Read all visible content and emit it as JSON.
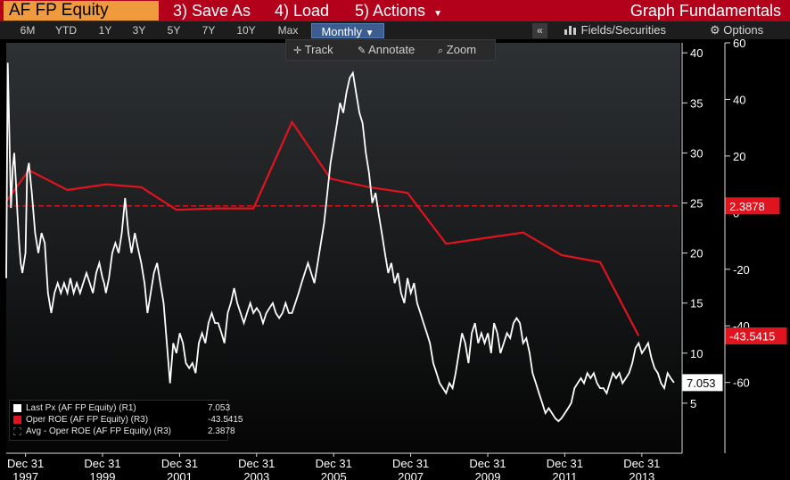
{
  "toolbar": {
    "ticker": "AF FP Equity",
    "save_as": "3) Save As",
    "load": "4) Load",
    "actions": "5) Actions",
    "title": "Graph Fundamentals"
  },
  "periods": [
    "6M",
    "YTD",
    "1Y",
    "3Y",
    "5Y",
    "7Y",
    "10Y",
    "Max"
  ],
  "frequency": "Monthly",
  "collapse_label": "«",
  "fields_label": "Fields/Securities",
  "options_label": "Options",
  "tools": {
    "track": "Track",
    "annotate": "Annotate",
    "zoom": "Zoom"
  },
  "legend": {
    "rows": [
      {
        "name": "Last Px (AF FP Equity) (R1)",
        "value": "7.053"
      },
      {
        "name": "Oper ROE (AF FP Equity) (R3)",
        "value": "-43.5415"
      },
      {
        "name": "Avg - Oper ROE (AF FP Equity) (R3)",
        "value": "2.3878"
      }
    ]
  },
  "colors": {
    "price": "#ffffff",
    "roe": "#e0141e",
    "avg": "#e0141e",
    "titlebar": "#b3001b",
    "ticker_bg": "#f09a3e"
  },
  "chart_data": {
    "type": "line",
    "x_axis": {
      "type": "date",
      "range": [
        "1997-07-01",
        "2014-12-31"
      ],
      "ticks": [
        {
          "date": "1997-12-31",
          "label": "Dec 31\n1997"
        },
        {
          "date": "1999-12-31",
          "label": "Dec 31\n1999"
        },
        {
          "date": "2001-12-31",
          "label": "Dec 31\n2001"
        },
        {
          "date": "2003-12-31",
          "label": "Dec 31\n2003"
        },
        {
          "date": "2005-12-31",
          "label": "Dec 31\n2005"
        },
        {
          "date": "2007-12-31",
          "label": "Dec 31\n2007"
        },
        {
          "date": "2009-12-31",
          "label": "Dec 31\n2009"
        },
        {
          "date": "2011-12-31",
          "label": "Dec 31\n2011"
        },
        {
          "date": "2013-12-31",
          "label": "Dec 31\n2013"
        }
      ]
    },
    "axis_r1": {
      "min": 0,
      "max": 41,
      "ticks": [
        5,
        10,
        15,
        20,
        25,
        30,
        35,
        40
      ]
    },
    "axis_r3": {
      "min": -85,
      "max": 60,
      "ticks": [
        -60,
        -40,
        -20,
        0,
        20,
        40,
        60
      ]
    },
    "grid": false,
    "series": [
      {
        "name": "Last Px (AF FP Equity) (R1)",
        "axis": "R1",
        "current": "7.053",
        "points": [
          [
            "1997-07-01",
            17.5
          ],
          [
            "1997-07-15",
            39
          ],
          [
            "1997-08-01",
            31
          ],
          [
            "1997-08-15",
            24.5
          ],
          [
            "1997-09-01",
            28.5
          ],
          [
            "1997-09-15",
            30
          ],
          [
            "1997-10-01",
            27
          ],
          [
            "1997-10-15",
            24
          ],
          [
            "1997-11-01",
            21
          ],
          [
            "1997-11-15",
            19
          ],
          [
            "1997-12-01",
            18
          ],
          [
            "1997-12-31",
            20
          ],
          [
            "1998-01-15",
            28
          ],
          [
            "1998-02-01",
            29
          ],
          [
            "1998-03-01",
            26
          ],
          [
            "1998-04-01",
            22
          ],
          [
            "1998-05-01",
            20
          ],
          [
            "1998-06-01",
            22
          ],
          [
            "1998-07-01",
            21
          ],
          [
            "1998-08-01",
            16
          ],
          [
            "1998-09-01",
            14
          ],
          [
            "1998-10-01",
            16
          ],
          [
            "1998-11-01",
            17
          ],
          [
            "1998-12-01",
            16
          ],
          [
            "1999-01-01",
            17
          ],
          [
            "1999-02-01",
            16
          ],
          [
            "1999-03-01",
            17.5
          ],
          [
            "1999-04-01",
            16
          ],
          [
            "1999-05-01",
            17
          ],
          [
            "1999-06-01",
            16
          ],
          [
            "1999-07-01",
            17
          ],
          [
            "1999-08-01",
            18
          ],
          [
            "1999-09-01",
            17
          ],
          [
            "1999-10-01",
            16
          ],
          [
            "1999-11-01",
            18
          ],
          [
            "1999-12-01",
            19
          ],
          [
            "1999-12-31",
            17.5
          ],
          [
            "2000-01-15",
            17
          ],
          [
            "2000-02-01",
            16
          ],
          [
            "2000-03-01",
            17.5
          ],
          [
            "2000-04-01",
            20
          ],
          [
            "2000-05-01",
            21
          ],
          [
            "2000-06-01",
            20
          ],
          [
            "2000-07-01",
            22
          ],
          [
            "2000-08-01",
            25.5
          ],
          [
            "2000-09-01",
            22
          ],
          [
            "2000-10-01",
            20
          ],
          [
            "2000-11-01",
            22
          ],
          [
            "2000-12-01",
            20.5
          ],
          [
            "2001-01-01",
            19
          ],
          [
            "2001-02-01",
            17
          ],
          [
            "2001-03-01",
            14
          ],
          [
            "2001-04-01",
            16
          ],
          [
            "2001-05-01",
            18
          ],
          [
            "2001-06-01",
            19
          ],
          [
            "2001-07-01",
            17
          ],
          [
            "2001-08-01",
            15
          ],
          [
            "2001-09-01",
            11
          ],
          [
            "2001-10-01",
            7
          ],
          [
            "2001-11-01",
            11
          ],
          [
            "2001-12-01",
            10
          ],
          [
            "2002-01-01",
            12
          ],
          [
            "2002-02-01",
            11
          ],
          [
            "2002-03-01",
            9
          ],
          [
            "2002-04-01",
            8.5
          ],
          [
            "2002-05-01",
            9
          ],
          [
            "2002-06-01",
            8
          ],
          [
            "2002-07-01",
            11
          ],
          [
            "2002-08-01",
            12
          ],
          [
            "2002-09-01",
            11
          ],
          [
            "2002-10-01",
            13
          ],
          [
            "2002-11-01",
            14
          ],
          [
            "2002-12-01",
            13
          ],
          [
            "2003-01-01",
            13
          ],
          [
            "2003-02-01",
            12
          ],
          [
            "2003-03-01",
            11
          ],
          [
            "2003-04-01",
            14
          ],
          [
            "2003-05-01",
            15
          ],
          [
            "2003-06-01",
            16.5
          ],
          [
            "2003-07-01",
            15
          ],
          [
            "2003-08-01",
            14
          ],
          [
            "2003-09-01",
            13
          ],
          [
            "2003-10-01",
            14
          ],
          [
            "2003-11-01",
            15
          ],
          [
            "2003-12-01",
            14
          ],
          [
            "2004-01-01",
            14.5
          ],
          [
            "2004-02-01",
            14
          ],
          [
            "2004-03-01",
            13
          ],
          [
            "2004-04-01",
            14
          ],
          [
            "2004-05-01",
            14.5
          ],
          [
            "2004-06-01",
            15
          ],
          [
            "2004-07-01",
            14
          ],
          [
            "2004-08-01",
            13.5
          ],
          [
            "2004-09-01",
            14
          ],
          [
            "2004-10-01",
            15
          ],
          [
            "2004-11-01",
            14
          ],
          [
            "2004-12-01",
            14
          ],
          [
            "2005-01-01",
            15
          ],
          [
            "2005-02-01",
            16
          ],
          [
            "2005-03-01",
            17
          ],
          [
            "2005-04-01",
            18
          ],
          [
            "2005-05-01",
            19
          ],
          [
            "2005-06-01",
            18
          ],
          [
            "2005-07-01",
            17
          ],
          [
            "2005-08-01",
            19
          ],
          [
            "2005-09-01",
            21
          ],
          [
            "2005-10-01",
            23
          ],
          [
            "2005-11-01",
            26
          ],
          [
            "2005-12-01",
            29
          ],
          [
            "2006-01-01",
            31
          ],
          [
            "2006-02-01",
            33
          ],
          [
            "2006-03-01",
            35
          ],
          [
            "2006-04-01",
            34
          ],
          [
            "2006-05-01",
            36
          ],
          [
            "2006-06-01",
            37.5
          ],
          [
            "2006-07-01",
            38
          ],
          [
            "2006-08-01",
            36
          ],
          [
            "2006-09-01",
            34
          ],
          [
            "2006-10-01",
            33
          ],
          [
            "2006-11-01",
            30
          ],
          [
            "2006-12-01",
            28
          ],
          [
            "2007-01-01",
            25
          ],
          [
            "2007-02-01",
            26
          ],
          [
            "2007-03-01",
            24
          ],
          [
            "2007-04-01",
            22
          ],
          [
            "2007-05-01",
            20
          ],
          [
            "2007-06-01",
            18
          ],
          [
            "2007-07-01",
            19
          ],
          [
            "2007-08-01",
            17
          ],
          [
            "2007-09-01",
            18
          ],
          [
            "2007-10-01",
            16
          ],
          [
            "2007-11-01",
            15
          ],
          [
            "2007-12-01",
            17.5
          ],
          [
            "2008-01-01",
            16
          ],
          [
            "2008-02-01",
            17
          ],
          [
            "2008-03-01",
            15
          ],
          [
            "2008-04-01",
            14
          ],
          [
            "2008-05-01",
            13
          ],
          [
            "2008-06-01",
            12
          ],
          [
            "2008-07-01",
            11
          ],
          [
            "2008-08-01",
            9
          ],
          [
            "2008-09-01",
            8
          ],
          [
            "2008-10-01",
            7
          ],
          [
            "2008-11-01",
            6.5
          ],
          [
            "2008-12-01",
            6
          ],
          [
            "2009-01-01",
            7
          ],
          [
            "2009-02-01",
            6.5
          ],
          [
            "2009-03-01",
            8
          ],
          [
            "2009-04-01",
            10
          ],
          [
            "2009-05-01",
            12
          ],
          [
            "2009-06-01",
            11
          ],
          [
            "2009-07-01",
            9
          ],
          [
            "2009-08-01",
            12
          ],
          [
            "2009-09-01",
            13
          ],
          [
            "2009-10-01",
            11
          ],
          [
            "2009-11-01",
            12
          ],
          [
            "2009-12-01",
            11
          ],
          [
            "2010-01-01",
            12
          ],
          [
            "2010-02-01",
            10
          ],
          [
            "2010-03-01",
            13
          ],
          [
            "2010-04-01",
            12
          ],
          [
            "2010-05-01",
            10
          ],
          [
            "2010-06-01",
            11
          ],
          [
            "2010-07-01",
            12
          ],
          [
            "2010-08-01",
            11.5
          ],
          [
            "2010-09-01",
            13
          ],
          [
            "2010-10-01",
            13.5
          ],
          [
            "2010-11-01",
            13
          ],
          [
            "2010-12-01",
            11
          ],
          [
            "2011-01-01",
            11.5
          ],
          [
            "2011-02-01",
            10
          ],
          [
            "2011-03-01",
            8
          ],
          [
            "2011-04-01",
            7
          ],
          [
            "2011-05-01",
            6
          ],
          [
            "2011-06-01",
            5
          ],
          [
            "2011-07-01",
            4
          ],
          [
            "2011-08-01",
            4.5
          ],
          [
            "2011-09-01",
            4
          ],
          [
            "2011-10-01",
            3.5
          ],
          [
            "2011-11-01",
            3.2
          ],
          [
            "2011-12-01",
            3.5
          ],
          [
            "2012-01-01",
            4
          ],
          [
            "2012-02-01",
            4.5
          ],
          [
            "2012-03-01",
            5
          ],
          [
            "2012-04-01",
            6.5
          ],
          [
            "2012-05-01",
            7
          ],
          [
            "2012-06-01",
            7.5
          ],
          [
            "2012-07-01",
            7
          ],
          [
            "2012-08-01",
            8
          ],
          [
            "2012-09-01",
            7.5
          ],
          [
            "2012-10-01",
            8
          ],
          [
            "2012-11-01",
            7
          ],
          [
            "2012-12-01",
            6.5
          ],
          [
            "2013-01-01",
            6.5
          ],
          [
            "2013-02-01",
            6
          ],
          [
            "2013-03-01",
            7
          ],
          [
            "2013-04-01",
            8
          ],
          [
            "2013-05-01",
            7.5
          ],
          [
            "2013-06-01",
            8
          ],
          [
            "2013-07-01",
            7
          ],
          [
            "2013-08-01",
            7.5
          ],
          [
            "2013-09-01",
            8
          ],
          [
            "2013-10-01",
            9
          ],
          [
            "2013-11-01",
            10.5
          ],
          [
            "2013-12-01",
            11
          ],
          [
            "2014-01-01",
            10
          ],
          [
            "2014-02-01",
            10.5
          ],
          [
            "2014-03-01",
            11
          ],
          [
            "2014-04-01",
            9.5
          ],
          [
            "2014-05-01",
            8.5
          ],
          [
            "2014-06-01",
            8
          ],
          [
            "2014-07-01",
            7
          ],
          [
            "2014-08-01",
            6.5
          ],
          [
            "2014-09-01",
            8
          ],
          [
            "2014-10-01",
            7.5
          ],
          [
            "2014-11-01",
            7.053
          ]
        ]
      },
      {
        "name": "Oper ROE (AF FP Equity) (R3)",
        "axis": "R3",
        "current": "-43.5415",
        "points": [
          [
            "1997-07-01",
            4
          ],
          [
            "1998-02-01",
            15
          ],
          [
            "1999-02-01",
            8
          ],
          [
            "2000-02-01",
            10
          ],
          [
            "2001-01-01",
            9
          ],
          [
            "2001-12-01",
            1
          ],
          [
            "2002-12-01",
            1.5
          ],
          [
            "2003-12-01",
            1.5
          ],
          [
            "2004-12-01",
            32
          ],
          [
            "2005-12-01",
            12
          ],
          [
            "2006-12-01",
            9
          ],
          [
            "2007-12-01",
            7
          ],
          [
            "2008-12-01",
            -11
          ],
          [
            "2009-12-01",
            -9
          ],
          [
            "2010-12-01",
            -7
          ],
          [
            "2011-12-01",
            -15
          ],
          [
            "2012-12-01",
            -17.5
          ],
          [
            "2013-12-01",
            -43.5415
          ]
        ]
      },
      {
        "name": "Avg - Oper ROE (AF FP Equity) (R3)",
        "axis": "R3",
        "current": "2.3878",
        "points": [
          [
            "1997-07-01",
            2.3878
          ],
          [
            "2014-12-31",
            2.3878
          ]
        ]
      }
    ]
  }
}
